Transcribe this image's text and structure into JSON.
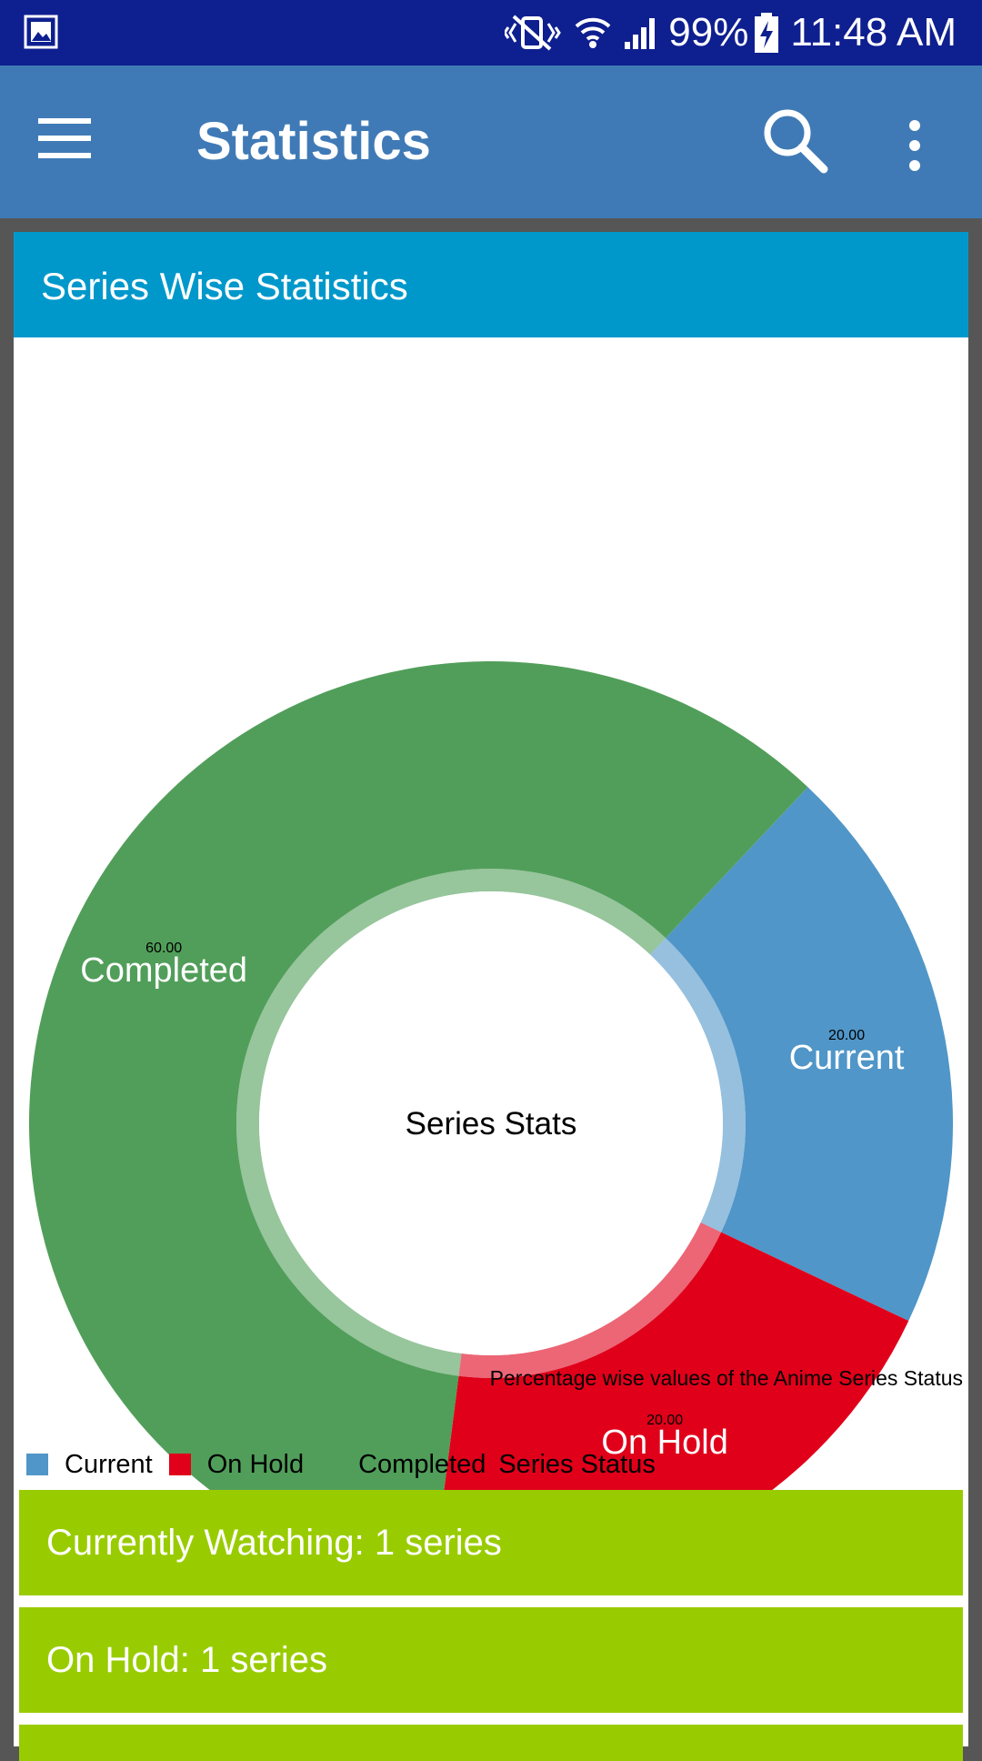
{
  "status_bar": {
    "battery": "99%",
    "time": "11:48 AM"
  },
  "app_bar": {
    "title": "Statistics"
  },
  "card": {
    "title": "Series Wise Statistics",
    "chart_description": "Percentage wise values of the Anime Series Status"
  },
  "chart_data": {
    "type": "pie",
    "variant": "donut",
    "center_text": "Series Stats",
    "series_label": "Series Status",
    "slices": [
      {
        "label": "Current",
        "value": 20.0,
        "value_label": "20.00",
        "color": "#5096c8"
      },
      {
        "label": "On Hold",
        "value": 20.0,
        "value_label": "20.00",
        "color": "#e0001a"
      },
      {
        "label": "Completed",
        "value": 60.0,
        "value_label": "60.00",
        "color": "#519e5a"
      }
    ],
    "legend_position": "bottom-left"
  },
  "summary": [
    {
      "text": "Currently Watching: 1 series"
    },
    {
      "text": "On Hold: 1 series"
    }
  ],
  "colors": {
    "status_bar": "#0e1f8f",
    "app_bar": "#3f7ab6",
    "card_header": "#0098cb",
    "summary_item": "#99cc00"
  }
}
